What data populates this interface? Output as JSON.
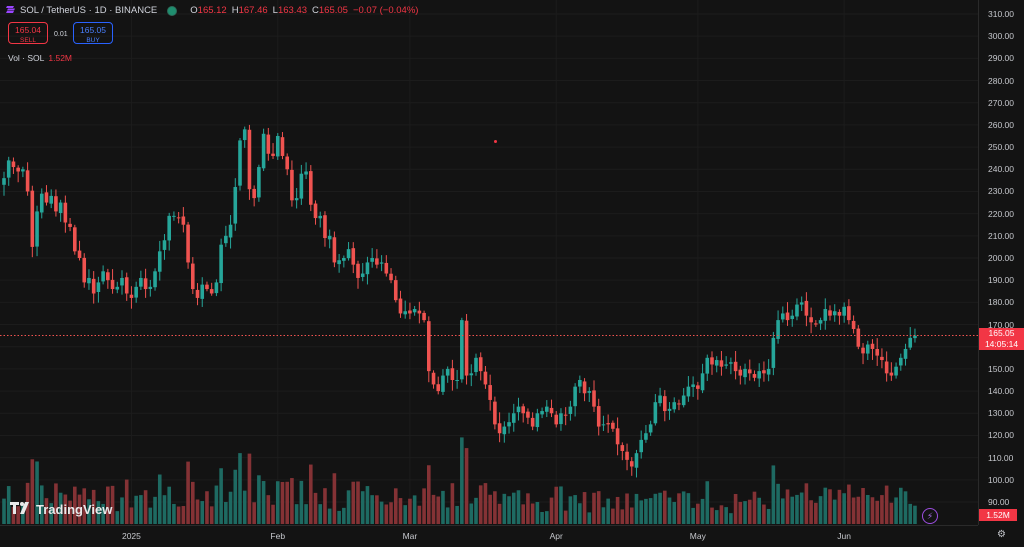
{
  "header": {
    "symbol": "SOL / TetherUS · 1D · BINANCE",
    "o_label": "O",
    "o_value": "165.12",
    "h_label": "H",
    "h_value": "167.46",
    "l_label": "L",
    "l_value": "163.43",
    "c_label": "C",
    "c_value": "165.05",
    "change": "−0.07 (−0.04%)"
  },
  "trade": {
    "sell_price": "165.04",
    "sell_label": "SELL",
    "spread": "0.01",
    "buy_price": "165.05",
    "buy_label": "BUY"
  },
  "volume": {
    "label": "Vol · SOL",
    "value": "1.52M"
  },
  "last_price": {
    "value": "165.05",
    "countdown": "14:05:14"
  },
  "volume_badge": "1.52M",
  "brand": "TradingView",
  "colors": {
    "up": "#26a69a",
    "down": "#ef5350",
    "background": "#131313",
    "accent": "#2962ff"
  },
  "icons": [
    "tradingview-logo-icon",
    "lightning-icon",
    "gear-icon"
  ],
  "chart_data": {
    "type": "candlestick",
    "symbol": "SOL / TetherUS",
    "interval": "1D",
    "exchange": "BINANCE",
    "ylim": [
      85,
      312
    ],
    "y_ticks": [
      90,
      100,
      110,
      120,
      130,
      140,
      150,
      160,
      170,
      180,
      190,
      200,
      210,
      220,
      230,
      240,
      250,
      260,
      270,
      280,
      290,
      300,
      310
    ],
    "x_ticks": [
      "2025",
      "Feb",
      "Mar",
      "Apr",
      "May",
      "Jun"
    ],
    "last_price": 165.05,
    "closes": [
      236,
      244,
      241,
      239,
      240,
      230,
      205,
      221,
      229,
      225,
      228,
      221,
      225,
      216,
      214,
      203,
      200,
      189,
      191,
      184,
      189,
      194,
      190,
      186,
      187,
      191,
      184,
      182,
      187,
      191,
      186,
      187,
      194,
      203,
      208,
      219,
      219,
      218,
      215,
      198,
      186,
      182,
      188,
      186,
      184,
      189,
      206,
      210,
      215,
      232,
      253,
      258,
      231,
      227,
      241,
      256,
      247,
      246,
      255,
      246,
      240,
      226,
      227,
      238,
      239,
      224,
      218,
      219,
      209,
      210,
      198,
      199,
      200,
      204,
      197,
      191,
      193,
      198,
      200,
      197,
      198,
      193,
      190,
      181,
      175,
      176,
      175,
      177,
      175,
      172,
      149,
      143,
      140,
      147,
      150,
      145,
      145,
      172,
      147,
      148,
      155,
      149,
      143,
      136,
      125,
      121,
      124,
      126,
      130,
      133,
      130,
      128,
      124,
      130,
      131,
      133,
      130,
      125,
      130,
      129,
      133,
      142,
      145,
      139,
      140,
      133,
      124,
      125,
      125,
      123,
      116,
      113,
      109,
      106,
      112,
      118,
      121,
      125,
      135,
      138,
      131,
      132,
      135,
      134,
      138,
      142,
      143,
      141,
      148,
      155,
      152,
      154,
      151,
      152,
      153,
      149,
      147,
      150,
      148,
      146,
      149,
      148,
      150,
      164,
      172,
      175,
      172,
      174,
      179,
      180,
      174,
      171,
      170,
      172,
      177,
      174,
      176,
      174,
      178,
      172,
      168,
      160,
      157,
      161,
      159,
      156,
      154,
      148,
      147,
      151,
      155,
      159,
      164,
      165
    ]
  }
}
